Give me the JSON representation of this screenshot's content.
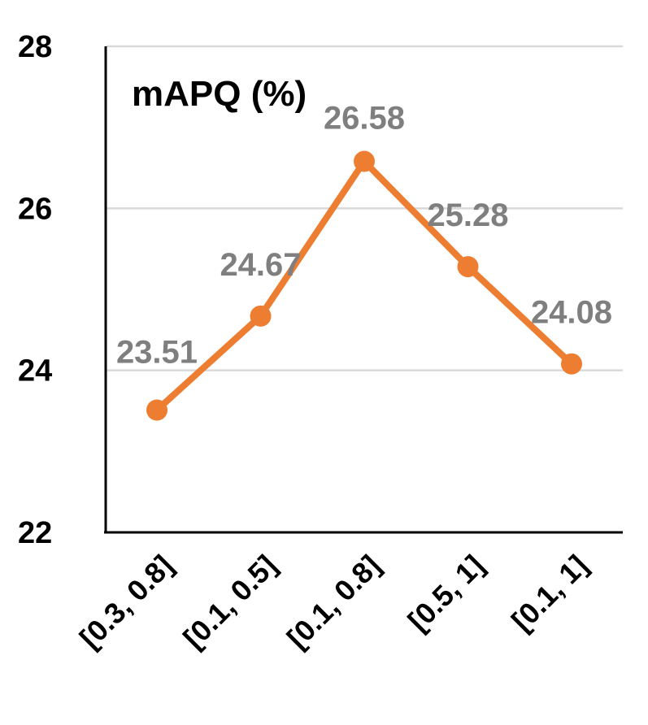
{
  "chart_data": {
    "type": "line",
    "title": "mAPQ (%)",
    "xlabel": "",
    "ylabel": "",
    "categories": [
      "[0.3, 0.8]",
      "[0.1, 0.5]",
      "[0.1, 0.8]",
      "[0.5, 1]",
      "[0.1, 1]"
    ],
    "series": [
      {
        "values": [
          23.51,
          24.67,
          26.58,
          25.28,
          24.08
        ],
        "color": "#ed7d31"
      }
    ],
    "data_labels": [
      "23.51",
      "24.67",
      "26.58",
      "25.28",
      "24.08"
    ],
    "ylim": [
      22,
      28
    ],
    "yticks": [
      "22",
      "24",
      "26",
      "28"
    ],
    "grid": true,
    "colors": {
      "line": "#ed7d31",
      "data_label": "#7f7f7f",
      "grid": "#d9d9d9",
      "axis": "#000000"
    }
  }
}
